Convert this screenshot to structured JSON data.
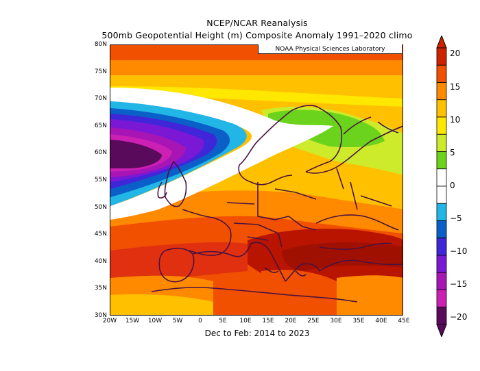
{
  "title_line1": "NCEP/NCAR Reanalysis",
  "title_line2": "500mb Geopotential Height (m) Composite Anomaly 1991–2020 climo",
  "subtitle": "Dec to Feb: 2014 to 2023",
  "credit": "NOAA Physical Sciences Laboratory",
  "y_ticks": [
    "80N",
    "75N",
    "70N",
    "65N",
    "60N",
    "55N",
    "50N",
    "45N",
    "40N",
    "35N",
    "30N"
  ],
  "x_ticks": [
    "20W",
    "15W",
    "10W",
    "5W",
    "0",
    "5E",
    "10E",
    "15E",
    "20E",
    "25E",
    "30E",
    "35E",
    "40E",
    "45E"
  ],
  "colorbar": {
    "labels": [
      "20",
      "15",
      "10",
      "5",
      "0",
      "−5",
      "−10",
      "−15",
      "−20"
    ],
    "colors": [
      "#cc2200",
      "#f05000",
      "#ff8a00",
      "#ffc000",
      "#ffe800",
      "#cdeb2a",
      "#6bd31b",
      "#ffffff",
      "#ffffff",
      "#22b6e6",
      "#0b5fc8",
      "#3f26d8",
      "#7a18d6",
      "#a716b5",
      "#cc1fb3",
      "#5a0a5a"
    ]
  },
  "map_extent": {
    "lon": [
      -20,
      45
    ],
    "lat": [
      30,
      80
    ]
  }
}
